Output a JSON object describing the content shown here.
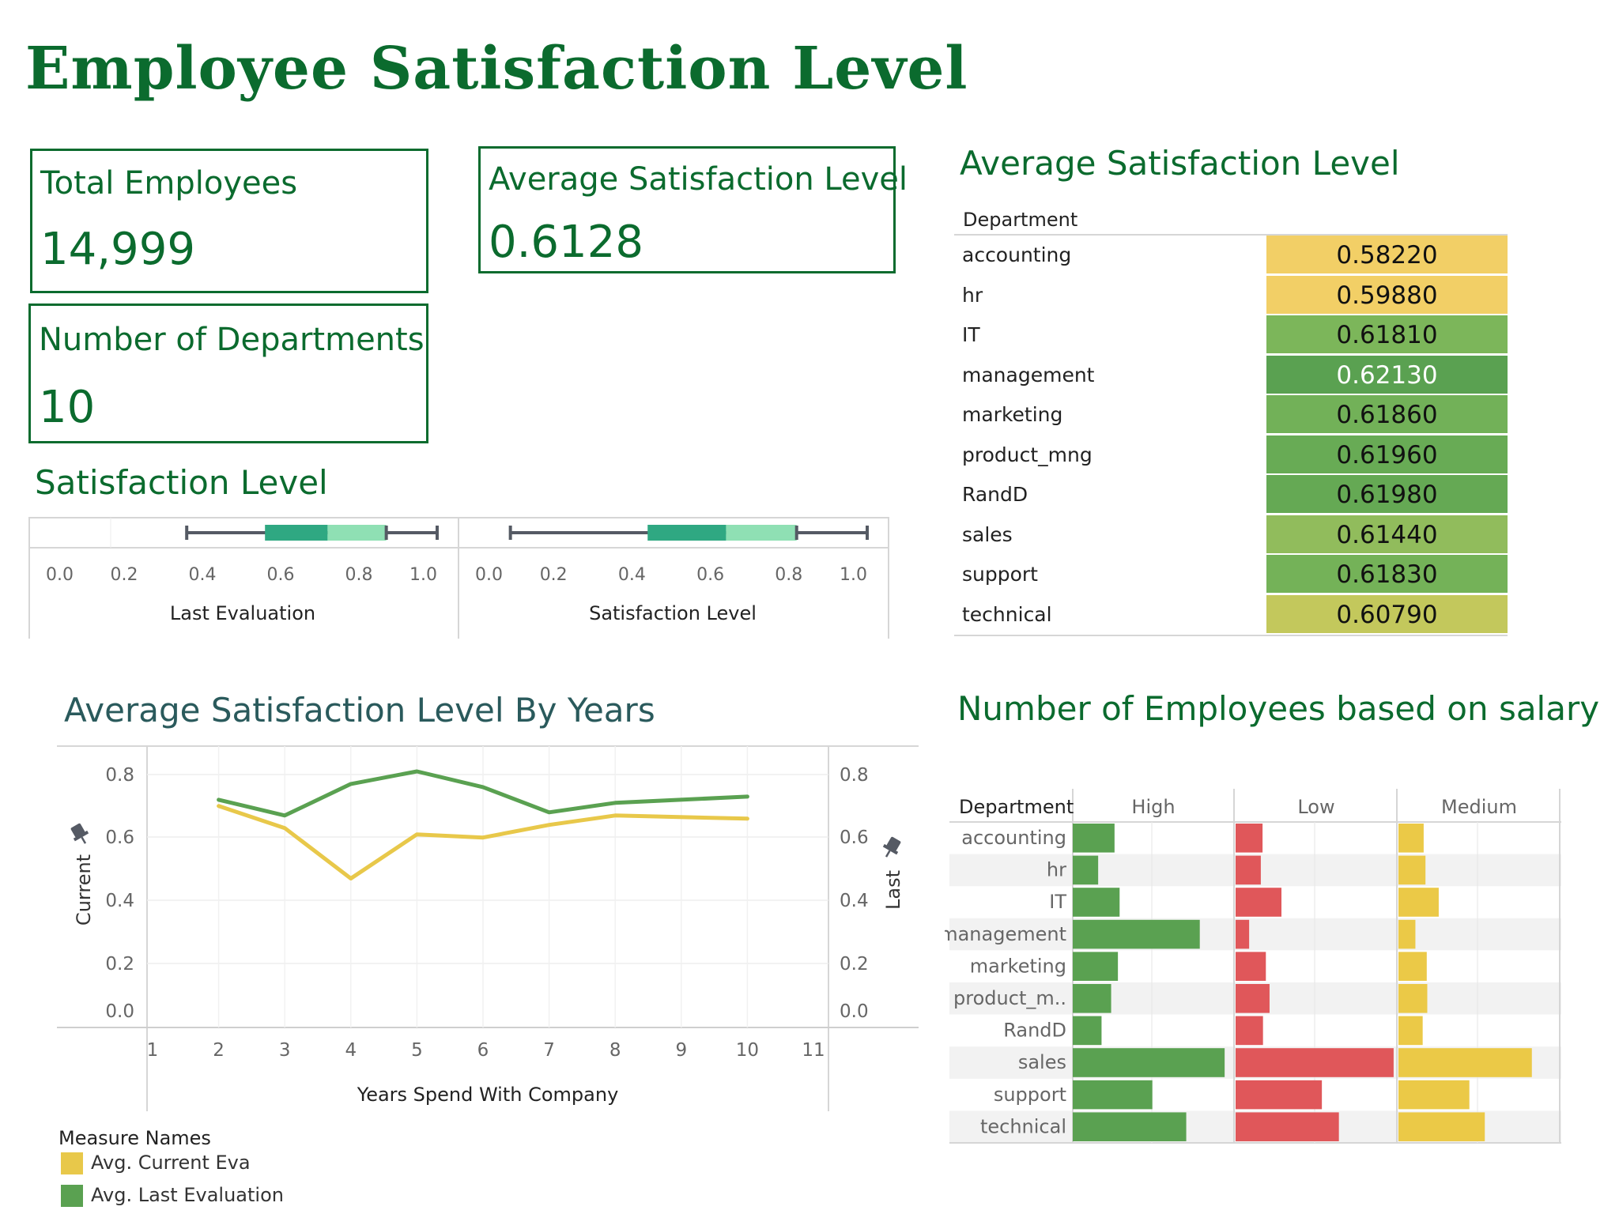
{
  "title": "Employee Satisfaction Level",
  "kpis": {
    "total_employees": {
      "label": "Total Employees",
      "value": "14,999"
    },
    "avg_satisfaction": {
      "label": "Average Satisfaction Level",
      "value": "0.6128"
    },
    "num_departments": {
      "label": "Number of Departments",
      "value": "10"
    }
  },
  "sections": {
    "boxplot_title": "Satisfaction Level",
    "avg_table_title": "Average Satisfaction Level",
    "line_title": "Average Satisfaction Level By Years",
    "salary_title": "Number of Employees based on salary"
  },
  "colors": {
    "brand_green": "#0b6b2e",
    "yellow": "#f2cf66",
    "green_mid": "#7cb65a",
    "green_dark": "#5aa151",
    "olive": "#c3c85c",
    "line_yellow": "#e8c84a",
    "line_green": "#5aa151",
    "bar_green": "#5aa151",
    "bar_red": "#e0575a",
    "bar_yellow": "#ebc947"
  },
  "chart_data": [
    {
      "type": "boxplot",
      "name": "Last Evaluation",
      "xlabel": "Last Evaluation",
      "xlim": [
        0,
        1
      ],
      "ticks": [
        "0.0",
        "0.2",
        "0.4",
        "0.6",
        "0.8",
        "1.0"
      ],
      "min": 0.36,
      "q1": 0.56,
      "median": 0.72,
      "q3": 0.87,
      "max": 1.0
    },
    {
      "type": "boxplot",
      "name": "Satisfaction Level",
      "xlabel": "Satisfaction Level",
      "xlim": [
        0,
        1
      ],
      "ticks": [
        "0.0",
        "0.2",
        "0.4",
        "0.6",
        "0.8",
        "1.0"
      ],
      "min": 0.09,
      "q1": 0.44,
      "median": 0.64,
      "q3": 0.82,
      "max": 1.0
    },
    {
      "type": "table",
      "header": "Department",
      "rows": [
        {
          "department": "accounting",
          "value": "0.58220",
          "color": "#f2cf66",
          "text_color": "#111"
        },
        {
          "department": "hr",
          "value": "0.59880",
          "color": "#f2cf66",
          "text_color": "#111"
        },
        {
          "department": "IT",
          "value": "0.61810",
          "color": "#7cb65a",
          "text_color": "#111"
        },
        {
          "department": "management",
          "value": "0.62130",
          "color": "#5aa151",
          "text_color": "#ffffff"
        },
        {
          "department": "marketing",
          "value": "0.61860",
          "color": "#72b158",
          "text_color": "#111"
        },
        {
          "department": "product_mng",
          "value": "0.61960",
          "color": "#68ab55",
          "text_color": "#111"
        },
        {
          "department": "RandD",
          "value": "0.61980",
          "color": "#65a954",
          "text_color": "#111"
        },
        {
          "department": "sales",
          "value": "0.61440",
          "color": "#91bc5c",
          "text_color": "#111"
        },
        {
          "department": "support",
          "value": "0.61830",
          "color": "#74b258",
          "text_color": "#111"
        },
        {
          "department": "technical",
          "value": "0.60790",
          "color": "#c3c85c",
          "text_color": "#111"
        }
      ]
    },
    {
      "type": "line",
      "xlabel": "Years Spend With Company",
      "ylabel_left": "Current",
      "ylabel_right": "Last",
      "x_ticks": [
        1,
        2,
        3,
        4,
        5,
        6,
        7,
        8,
        9,
        10,
        11
      ],
      "y_ticks": [
        "0.0",
        "0.2",
        "0.4",
        "0.6",
        "0.8"
      ],
      "ylim": [
        0,
        0.85
      ],
      "xlim": [
        1,
        11
      ],
      "legend_title": "Measure Names",
      "series": [
        {
          "name": "Avg. Current Eva",
          "color": "#e8c84a",
          "x": [
            2,
            3,
            4,
            5,
            6,
            7,
            8,
            10
          ],
          "values": [
            0.7,
            0.63,
            0.47,
            0.61,
            0.6,
            0.64,
            0.67,
            0.66
          ]
        },
        {
          "name": "Avg. Last Evaluation",
          "color": "#5aa151",
          "x": [
            2,
            3,
            4,
            5,
            6,
            7,
            8,
            10
          ],
          "values": [
            0.72,
            0.67,
            0.77,
            0.81,
            0.76,
            0.68,
            0.71,
            0.73
          ]
        }
      ]
    },
    {
      "type": "bar",
      "orientation": "horizontal",
      "header": "Department",
      "categories": [
        "accounting",
        "hr",
        "IT",
        "management",
        "marketing",
        "product_m..",
        "RandD",
        "sales",
        "support",
        "technical"
      ],
      "panels": [
        "High",
        "Low",
        "Medium"
      ],
      "series": [
        {
          "name": "High",
          "color": "#5aa151",
          "values": [
            74,
            45,
            83,
            225,
            80,
            68,
            51,
            269,
            141,
            201
          ]
        },
        {
          "name": "Low",
          "color": "#e0575a",
          "values": [
            358,
            335,
            609,
            180,
            402,
            451,
            364,
            2099,
            1146,
            1372
          ]
        },
        {
          "name": "Medium",
          "color": "#ebc947",
          "values": [
            335,
            359,
            535,
            225,
            376,
            383,
            322,
            1772,
            942,
            1147
          ]
        }
      ]
    }
  ]
}
